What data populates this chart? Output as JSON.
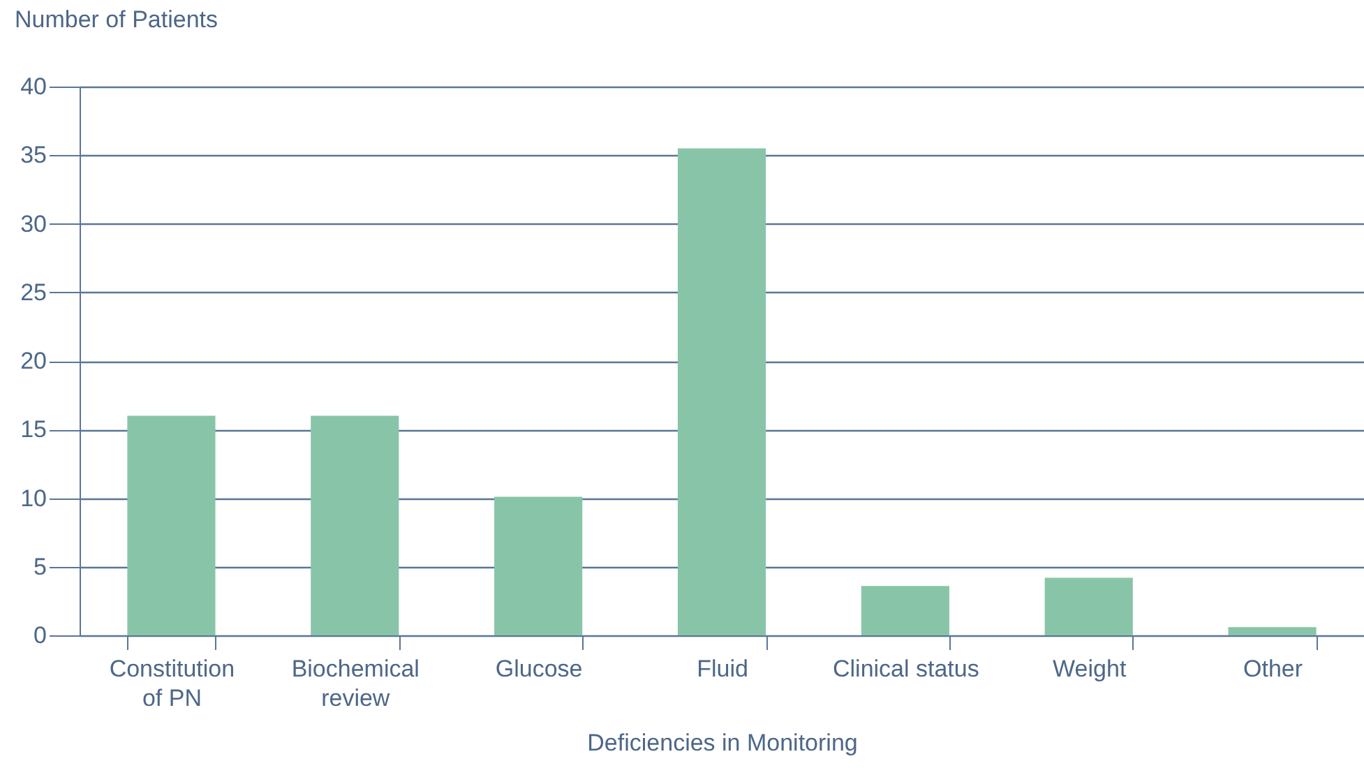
{
  "chart_data": {
    "type": "bar",
    "ylabel": "Number of Patients",
    "xlabel": "Deficiencies in Monitoring",
    "categories": [
      "Constitution of PN",
      "Biochemical review",
      "Glucose",
      "Fluid",
      "Clinical status",
      "Weight",
      "Other"
    ],
    "values": [
      16,
      16,
      10.1,
      35.5,
      3.6,
      4.2,
      0.6
    ],
    "color": "#88c5a8",
    "ylim": [
      0,
      40
    ],
    "yticks": [
      0,
      5,
      10,
      15,
      20,
      25,
      30,
      35,
      40
    ],
    "grid": "y"
  }
}
